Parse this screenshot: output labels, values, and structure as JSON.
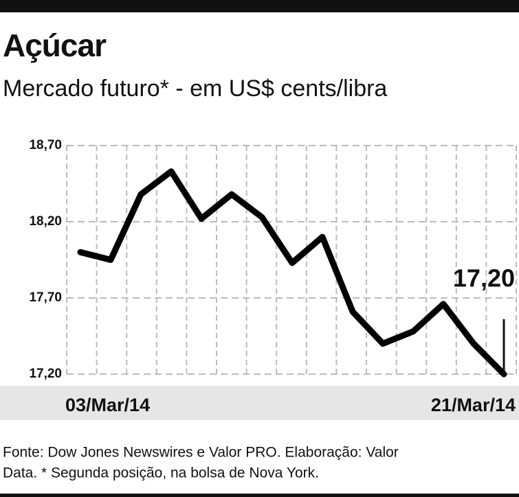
{
  "chart_data": {
    "type": "line",
    "title": "Açúcar",
    "subtitle": "Mercado futuro* - em US$ cents/libra",
    "categories": [
      "03/Mar/14",
      null,
      null,
      null,
      null,
      null,
      null,
      null,
      null,
      null,
      null,
      null,
      null,
      null,
      "21/Mar/14"
    ],
    "values": [
      18.0,
      17.95,
      18.38,
      18.53,
      18.22,
      18.38,
      18.23,
      17.93,
      18.1,
      17.61,
      17.4,
      17.48,
      17.66,
      17.4,
      17.2
    ],
    "value_labels": [
      null,
      null,
      null,
      null,
      null,
      null,
      null,
      null,
      null,
      null,
      null,
      null,
      null,
      null,
      "17,20"
    ],
    "color": "#000000",
    "ylim": [
      17.2,
      18.7
    ],
    "yticks": [
      {
        "value": 18.7,
        "label": "18,70"
      },
      {
        "value": 18.2,
        "label": "18,20"
      },
      {
        "value": 17.7,
        "label": "17,70"
      },
      {
        "value": 17.2,
        "label": "17,20"
      }
    ],
    "grid": true,
    "note_lines": [
      "Fonte: Dow Jones Newswires e Valor PRO. Elaboração: Valor",
      "Data. * Segunda posição, na bolsa de Nova York."
    ]
  }
}
